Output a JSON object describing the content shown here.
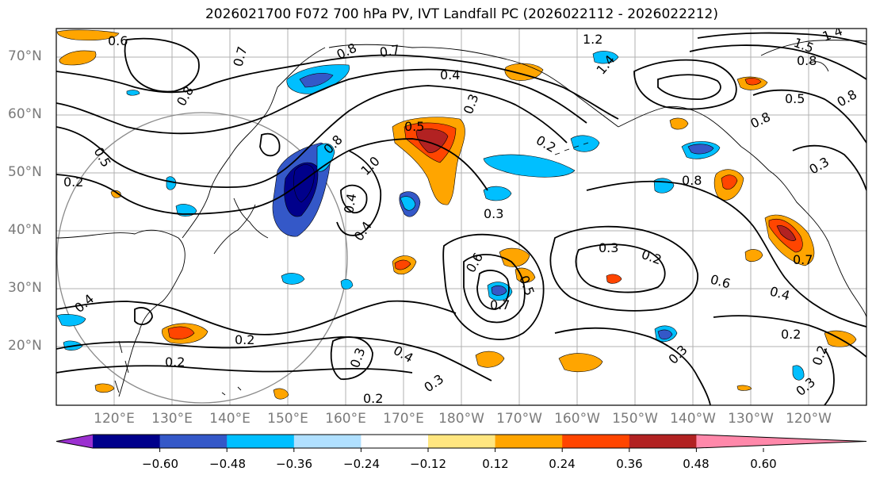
{
  "title": "2026021700 F072 700 hPa PV, IVT Landfall PC (2026022112 - 2026022212)",
  "lat_labels": [
    "70°N",
    "60°N",
    "50°N",
    "40°N",
    "30°N",
    "20°N"
  ],
  "lon_labels": [
    "120°E",
    "130°E",
    "140°E",
    "150°E",
    "160°E",
    "170°E",
    "180°W",
    "170°W",
    "160°W",
    "150°W",
    "140°W",
    "130°W",
    "120°W"
  ],
  "colorbar": {
    "ticks": [
      "−0.60",
      "−0.48",
      "−0.36",
      "−0.24",
      "−0.12",
      "0.12",
      "0.24",
      "0.36",
      "0.48",
      "0.60"
    ],
    "colors": [
      "#9b30d0",
      "#00008b",
      "#3458c8",
      "#00bfff",
      "#b0e0ff",
      "#ffffff",
      "#ffe680",
      "#ffa500",
      "#ff4500",
      "#b22222",
      "#ff88aa"
    ]
  },
  "contour_labels": [
    "0.6",
    "0.7",
    "0.8",
    "0.7",
    "1.2",
    "1.5",
    "1.4",
    "0.8",
    "0.4",
    "1.4",
    "0.3",
    "0.8",
    "0.5",
    "0.8",
    "0.5",
    "0.8",
    "0.2",
    "0.8",
    "0.5",
    "0.3",
    "1.0",
    "0.8",
    "0.4",
    "0.3",
    "0.4",
    "0.3",
    "0.6",
    "0.5",
    "0.2",
    "0.7",
    "0.6",
    "0.4",
    "0.4",
    "0.2",
    "0.2",
    "0.2",
    "0.4",
    "0.3",
    "0.3",
    "0.3",
    "0.2",
    "0.7",
    "0.2",
    "0.3",
    "0.2"
  ]
}
